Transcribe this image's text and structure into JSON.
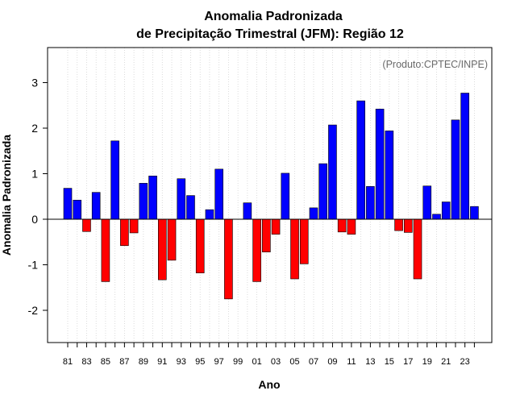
{
  "colors": {
    "positive": "#0000ff",
    "negative": "#ff0000",
    "grid": "#d3d3d3",
    "credit": "#6a6a6a"
  },
  "chart_data": {
    "type": "bar",
    "title": "Anomalia Padronizada",
    "subtitle": "de Precipitação Trimestral (JFM): Região 12",
    "xlabel": "Ano",
    "ylabel": "Anomalia Padronizada",
    "credit": "(Produto:CPTEC/INPE)",
    "ylim": [
      -2.7,
      3.75
    ],
    "yticks": [
      -2,
      -1,
      0,
      1,
      2,
      3
    ],
    "ytick_labels": [
      "-2",
      "-1",
      "0",
      "1",
      "2",
      "3"
    ],
    "grid": true,
    "categories": [
      "81",
      "82",
      "83",
      "84",
      "85",
      "86",
      "87",
      "88",
      "89",
      "90",
      "91",
      "92",
      "93",
      "94",
      "95",
      "96",
      "97",
      "98",
      "99",
      "00",
      "01",
      "02",
      "03",
      "04",
      "05",
      "06",
      "07",
      "08",
      "09",
      "10",
      "11",
      "12",
      "13",
      "14",
      "15",
      "16",
      "17",
      "18",
      "19",
      "20",
      "21",
      "22",
      "23",
      "24"
    ],
    "xtick_labels": [
      "81",
      "83",
      "85",
      "87",
      "89",
      "91",
      "93",
      "95",
      "97",
      "99",
      "01",
      "03",
      "05",
      "07",
      "09",
      "11",
      "13",
      "15",
      "17",
      "19",
      "21",
      "23"
    ],
    "values": [
      0.68,
      0.42,
      -0.27,
      0.59,
      -1.37,
      1.72,
      -0.58,
      -0.3,
      0.79,
      0.95,
      -1.33,
      -0.9,
      0.89,
      0.52,
      -1.18,
      0.21,
      1.1,
      -1.75,
      0.0,
      0.36,
      -1.37,
      -0.72,
      -0.33,
      1.01,
      -1.31,
      -0.98,
      0.25,
      1.22,
      2.07,
      -0.28,
      -0.33,
      2.6,
      0.72,
      2.42,
      1.94,
      -0.25,
      -0.29,
      -1.31,
      0.73,
      0.11,
      0.38,
      2.18,
      2.77,
      0.28
    ]
  }
}
